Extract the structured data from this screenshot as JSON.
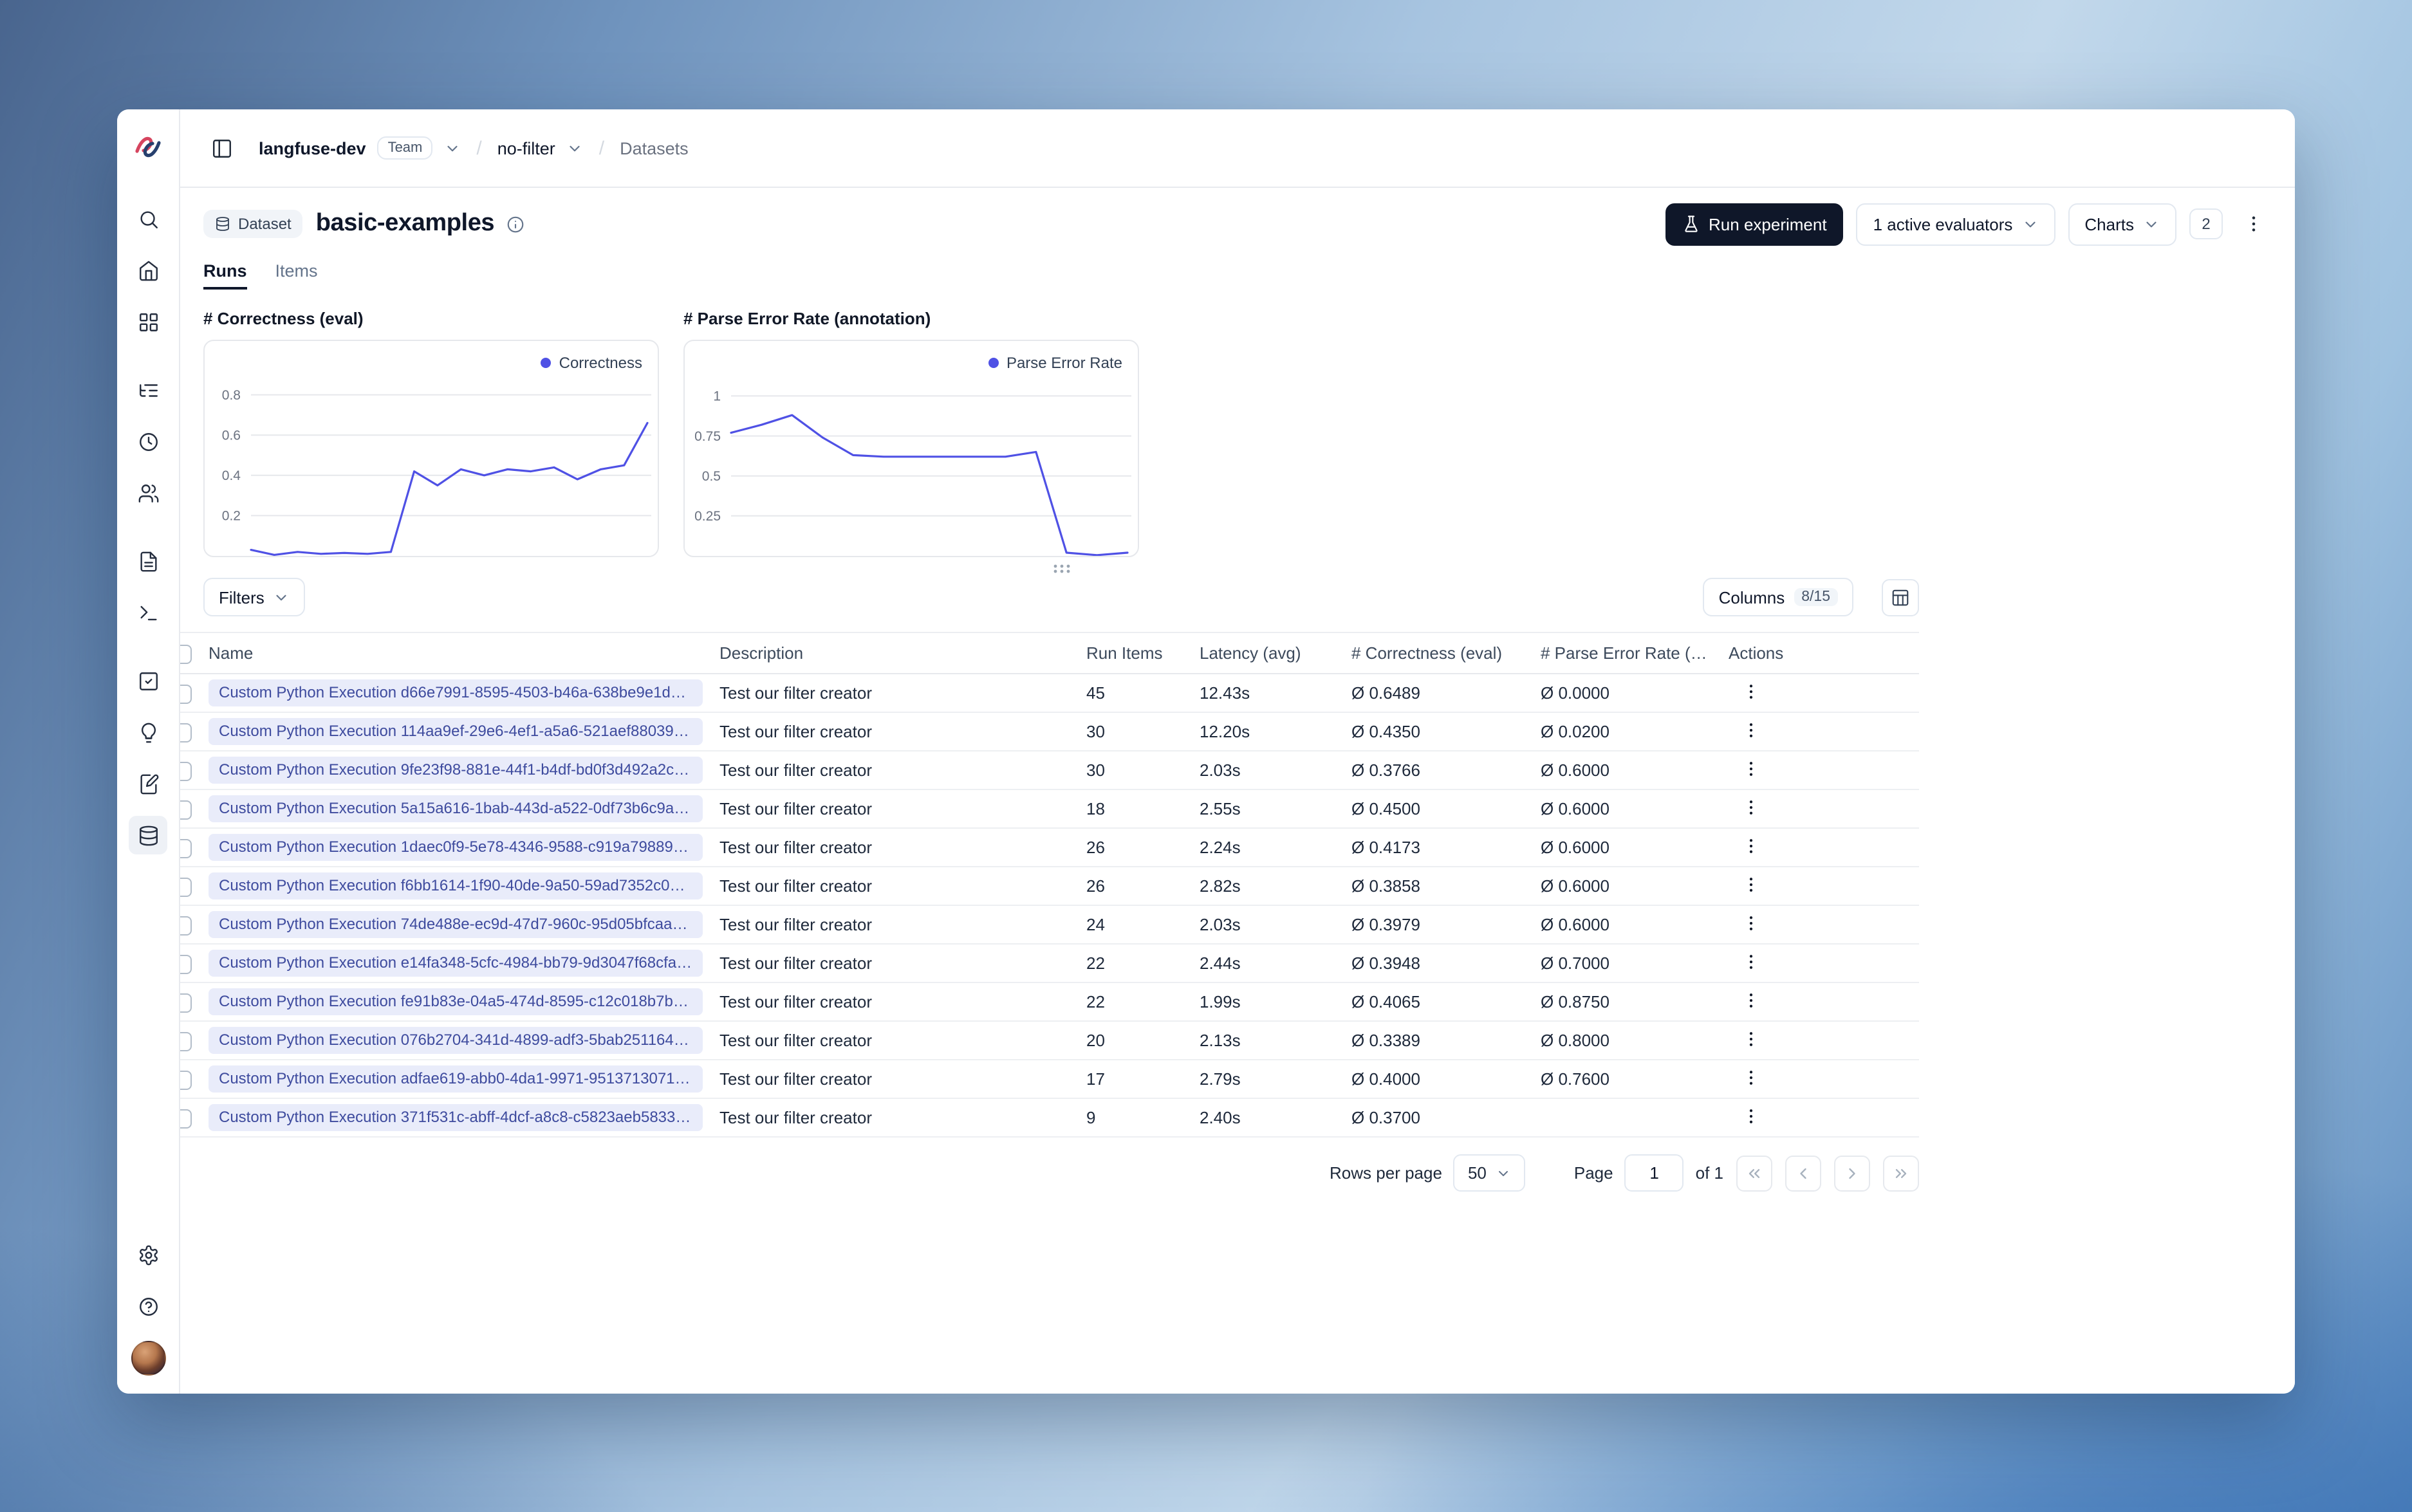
{
  "colors": {
    "accent": "#4f51e5",
    "badge_bg": "#e9ecfa",
    "badge_text": "#3e4b9e",
    "dark_button": "#0f1729"
  },
  "topbar": {
    "org": "langfuse-dev",
    "org_badge": "Team",
    "env": "no-filter",
    "section": "Datasets"
  },
  "sidebar": {
    "icons": [
      "langfuse-logo",
      "search",
      "home",
      "layout-grid",
      "list-tree",
      "clock",
      "users",
      "file-text",
      "terminal",
      "square-check",
      "lightbulb",
      "notebook-pen",
      "database",
      "settings-gear",
      "help-circle",
      "user-avatar"
    ]
  },
  "page": {
    "type_badge": "Dataset",
    "title": "basic-examples"
  },
  "actions": {
    "run_experiment": "Run experiment",
    "evaluators": "1 active evaluators",
    "charts": "Charts",
    "charts_count": "2"
  },
  "tabs": [
    {
      "label": "Runs",
      "active": true
    },
    {
      "label": "Items",
      "active": false
    }
  ],
  "chart_data": [
    {
      "type": "line",
      "title": "# Correctness (eval)",
      "legend": "Correctness",
      "yticks": [
        0.8,
        0.6,
        0.4,
        0.2
      ],
      "ylim": [
        0,
        0.85
      ],
      "grid": true,
      "legend_position": "top-right",
      "values": [
        0.03,
        0.005,
        0.02,
        0.01,
        0.015,
        0.01,
        0.02,
        0.42,
        0.35,
        0.43,
        0.4,
        0.43,
        0.42,
        0.44,
        0.38,
        0.43,
        0.45,
        0.66
      ]
    },
    {
      "type": "line",
      "title": "# Parse Error Rate (annotation)",
      "legend": "Parse Error Rate",
      "yticks": [
        1,
        0.75,
        0.5,
        0.25
      ],
      "ylim": [
        0,
        1.07
      ],
      "grid": true,
      "legend_position": "top-right",
      "values": [
        0.77,
        0.82,
        0.88,
        0.74,
        0.63,
        0.62,
        0.62,
        0.62,
        0.62,
        0.62,
        0.65,
        0.02,
        0.005,
        0.02
      ]
    }
  ],
  "toolbar": {
    "filters": "Filters",
    "columns": "Columns",
    "columns_count": "8/15"
  },
  "table": {
    "headers": [
      "Name",
      "Description",
      "Run Items",
      "Latency (avg)",
      "# Correctness (eval)",
      "# Parse Error Rate (an...",
      "Actions"
    ],
    "rows": [
      {
        "name": "Custom Python Execution d66e7991-8595-4503-b46a-638be9e1d5b...",
        "description": "Test our filter creator",
        "run_items": "45",
        "latency": "12.43s",
        "correctness": "Ø 0.6489",
        "parse_error": "Ø 0.0000"
      },
      {
        "name": "Custom Python Execution 114aa9ef-29e6-4ef1-a5a6-521aef88039a - ...",
        "description": "Test our filter creator",
        "run_items": "30",
        "latency": "12.20s",
        "correctness": "Ø 0.4350",
        "parse_error": "Ø 0.0200"
      },
      {
        "name": "Custom Python Execution 9fe23f98-881e-44f1-b4df-bd0f3d492a2c - ...",
        "description": "Test our filter creator",
        "run_items": "30",
        "latency": "2.03s",
        "correctness": "Ø 0.3766",
        "parse_error": "Ø 0.6000"
      },
      {
        "name": "Custom Python Execution 5a15a616-1bab-443d-a522-0df73b6c9af9 -...",
        "description": "Test our filter creator",
        "run_items": "18",
        "latency": "2.55s",
        "correctness": "Ø 0.4500",
        "parse_error": "Ø 0.6000"
      },
      {
        "name": "Custom Python Execution 1daec0f9-5e78-4346-9588-c919a7988948...",
        "description": "Test our filter creator",
        "run_items": "26",
        "latency": "2.24s",
        "correctness": "Ø 0.4173",
        "parse_error": "Ø 0.6000"
      },
      {
        "name": "Custom Python Execution f6bb1614-1f90-40de-9a50-59ad7352c068 ...",
        "description": "Test our filter creator",
        "run_items": "26",
        "latency": "2.82s",
        "correctness": "Ø 0.3858",
        "parse_error": "Ø 0.6000"
      },
      {
        "name": "Custom Python Execution 74de488e-ec9d-47d7-960c-95d05bfcaa6a ...",
        "description": "Test our filter creator",
        "run_items": "24",
        "latency": "2.03s",
        "correctness": "Ø 0.3979",
        "parse_error": "Ø 0.6000"
      },
      {
        "name": "Custom Python Execution e14fa348-5cfc-4984-bb79-9d3047f68cfa -...",
        "description": "Test our filter creator",
        "run_items": "22",
        "latency": "2.44s",
        "correctness": "Ø 0.3948",
        "parse_error": "Ø 0.7000"
      },
      {
        "name": "Custom Python Execution fe91b83e-04a5-474d-8595-c12c018b7b5c ...",
        "description": "Test our filter creator",
        "run_items": "22",
        "latency": "1.99s",
        "correctness": "Ø 0.4065",
        "parse_error": "Ø 0.8750"
      },
      {
        "name": "Custom Python Execution 076b2704-341d-4899-adf3-5bab2511645e ...",
        "description": "Test our filter creator",
        "run_items": "20",
        "latency": "2.13s",
        "correctness": "Ø 0.3389",
        "parse_error": "Ø 0.8000"
      },
      {
        "name": "Custom Python Execution adfae619-abb0-4da1-9971-951371307128 - ...",
        "description": "Test our filter creator",
        "run_items": "17",
        "latency": "2.79s",
        "correctness": "Ø 0.4000",
        "parse_error": "Ø 0.7600"
      },
      {
        "name": "Custom Python Execution 371f531c-abff-4dcf-a8c8-c5823aeb5833 - ...",
        "description": "Test our filter creator",
        "run_items": "9",
        "latency": "2.40s",
        "correctness": "Ø 0.3700",
        "parse_error": ""
      }
    ]
  },
  "footer": {
    "rows_per_page_label": "Rows per page",
    "page_size": "50",
    "page_label": "Page",
    "page_value": "1",
    "of_label": "of 1"
  }
}
